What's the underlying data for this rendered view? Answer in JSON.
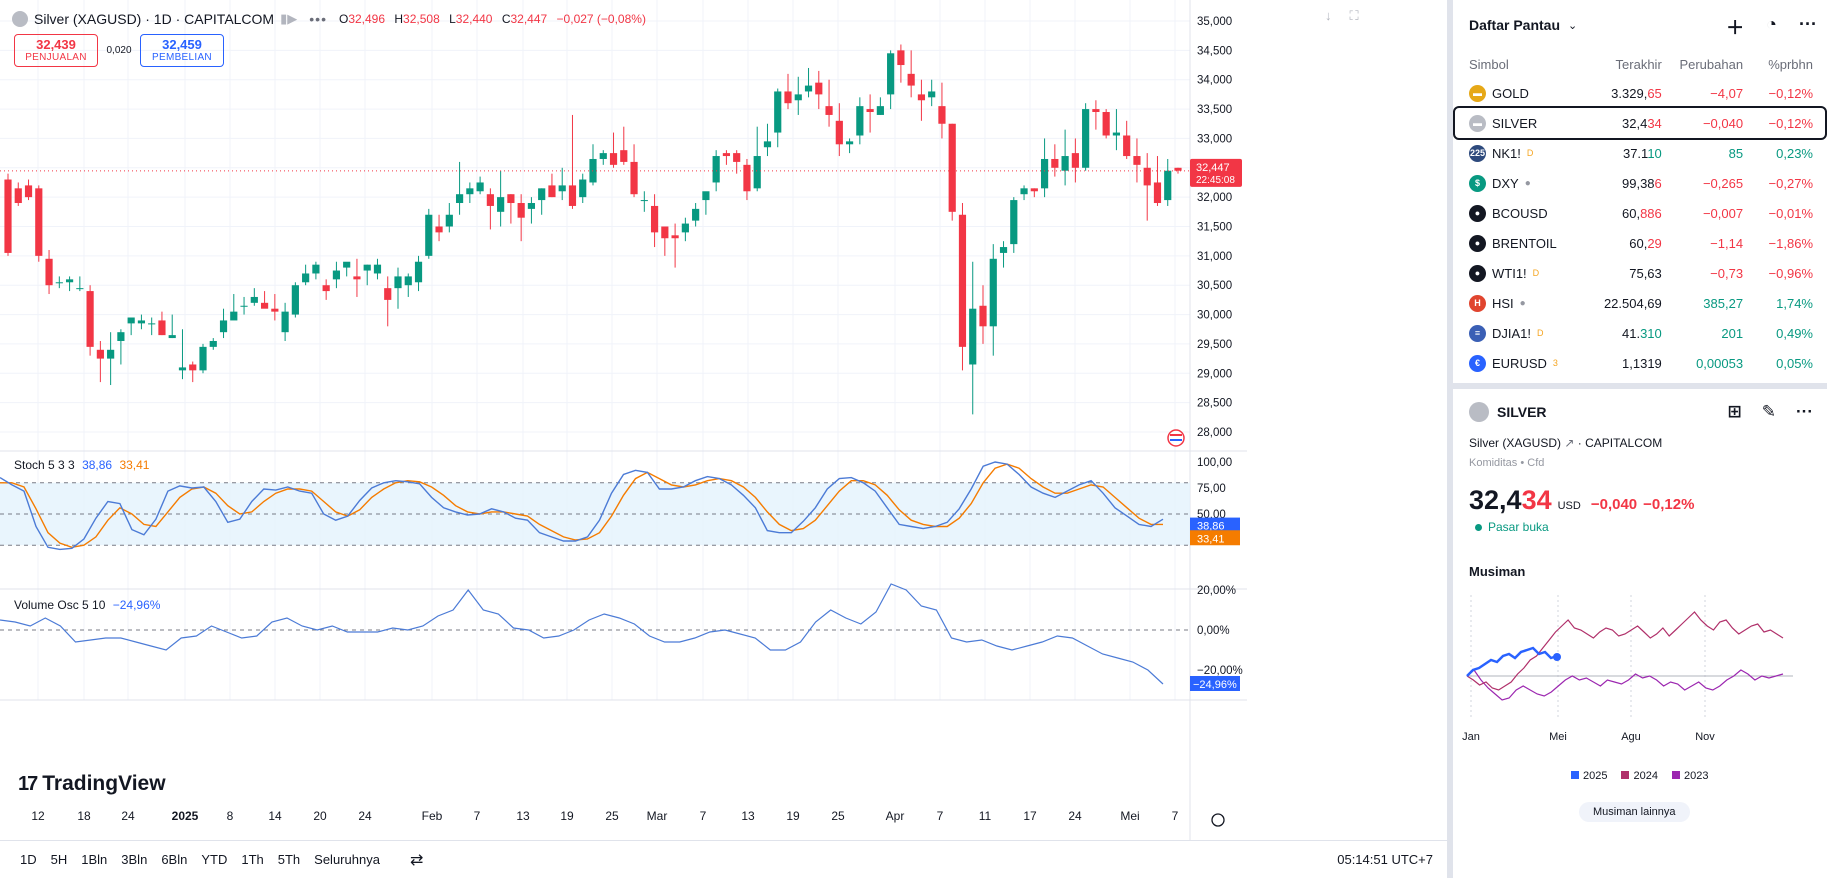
{
  "header": {
    "title": "Silver (XAGUSD) · 1D · CAPITALCOM",
    "ohlc": [
      {
        "k": "O",
        "v": "32,496"
      },
      {
        "k": "H",
        "v": "32,508"
      },
      {
        "k": "L",
        "v": "32,440"
      },
      {
        "k": "C",
        "v": "32,447"
      }
    ],
    "change": "−0,027 (−0,08%)"
  },
  "trade": {
    "sell_price": "32,439",
    "sell_label": "PENJUALAN",
    "spread": "0,020",
    "buy_price": "32,459",
    "buy_label": "PEMBELIAN"
  },
  "price_tag": {
    "value": "32,447",
    "countdown": "22:45:08"
  },
  "price_axis": [
    "35,000",
    "34,500",
    "34,000",
    "33,500",
    "33,000",
    "32,500",
    "32,000",
    "31,500",
    "31,000",
    "30,500",
    "30,000",
    "29,500",
    "29,000",
    "28,500",
    "28,000"
  ],
  "stoch": {
    "label": "Stoch 5 3 3",
    "k_val": "38,86",
    "d_val": "33,41",
    "axis": [
      "100,00",
      "75,00",
      "50,00"
    ],
    "k_color": "#4c7bd6",
    "d_color": "#f57c00"
  },
  "volosc": {
    "label": "Volume Osc 5 10",
    "value": "−24,96%",
    "axis": [
      "20,00%",
      "0,00%",
      "−20,00%"
    ]
  },
  "time_axis": [
    {
      "t": "12",
      "b": false
    },
    {
      "t": "18",
      "b": false
    },
    {
      "t": "24",
      "b": false
    },
    {
      "t": "2025",
      "b": true
    },
    {
      "t": "8",
      "b": false
    },
    {
      "t": "14",
      "b": false
    },
    {
      "t": "20",
      "b": false
    },
    {
      "t": "24",
      "b": false
    },
    {
      "t": "Feb",
      "b": false
    },
    {
      "t": "7",
      "b": false
    },
    {
      "t": "13",
      "b": false
    },
    {
      "t": "19",
      "b": false
    },
    {
      "t": "25",
      "b": false
    },
    {
      "t": "Mar",
      "b": false
    },
    {
      "t": "7",
      "b": false
    },
    {
      "t": "13",
      "b": false
    },
    {
      "t": "19",
      "b": false
    },
    {
      "t": "25",
      "b": false
    },
    {
      "t": "Apr",
      "b": false
    },
    {
      "t": "7",
      "b": false
    },
    {
      "t": "11",
      "b": false
    },
    {
      "t": "17",
      "b": false
    },
    {
      "t": "24",
      "b": false
    },
    {
      "t": "Mei",
      "b": false
    },
    {
      "t": "7",
      "b": false
    }
  ],
  "logo": "TradingView",
  "timeframes": [
    "1D",
    "5H",
    "1Bln",
    "3Bln",
    "6Bln",
    "YTD",
    "1Th",
    "5Th",
    "Seluruhnya"
  ],
  "clock": "05:14:51 UTC+7",
  "colors": {
    "up": "#089981",
    "down": "#f23645",
    "accent": "#2962ff"
  },
  "chart_data": {
    "type": "candlestick",
    "ylim": [
      27800,
      35200
    ],
    "candles": [
      [
        32100,
        32300,
        31050,
        31000,
        32400
      ],
      [
        32050,
        32150,
        31900,
        32250,
        31850
      ],
      [
        32150,
        32200,
        32000,
        32300,
        31950
      ],
      [
        32100,
        32150,
        31000,
        32200,
        30900
      ],
      [
        31000,
        30950,
        30500,
        31100,
        30350
      ],
      [
        30600,
        30550,
        30550,
        30650,
        30450
      ],
      [
        30600,
        30550,
        30600,
        30650,
        30400
      ],
      [
        30550,
        30450,
        30450,
        30650,
        30400
      ],
      [
        30450,
        30400,
        29450,
        30500,
        29300
      ],
      [
        29450,
        29400,
        29250,
        29550,
        28850
      ],
      [
        29500,
        29250,
        29400,
        29700,
        28800
      ],
      [
        29350,
        29550,
        29700,
        29750,
        29150
      ],
      [
        29700,
        29850,
        29950,
        29900,
        29650
      ],
      [
        29900,
        29850,
        29900,
        30000,
        29750
      ],
      [
        29800,
        29850,
        29850,
        29950,
        29650
      ],
      [
        29900,
        29900,
        29650,
        30050,
        29650
      ],
      [
        29650,
        29600,
        29650,
        30000,
        29600
      ],
      [
        29650,
        29050,
        29100,
        29750,
        28900
      ],
      [
        29100,
        29150,
        29050,
        29200,
        28850
      ],
      [
        29100,
        29050,
        29450,
        29500,
        29000
      ],
      [
        29500,
        29450,
        29550,
        29600,
        29400
      ],
      [
        29700,
        29700,
        29900,
        30100,
        29600
      ],
      [
        30050,
        29900,
        30050,
        30350,
        29950
      ],
      [
        30050,
        30150,
        30150,
        30300,
        30000
      ],
      [
        30100,
        30200,
        30300,
        30450,
        30150
      ],
      [
        30150,
        30200,
        30100,
        30400,
        30150
      ],
      [
        30200,
        30100,
        30050,
        30350,
        29900
      ],
      [
        30050,
        29700,
        30050,
        30200,
        29550
      ],
      [
        30200,
        30000,
        30500,
        30550,
        29950
      ],
      [
        30600,
        30550,
        30700,
        30850,
        30500
      ],
      [
        30800,
        30700,
        30850,
        30900,
        30600
      ],
      [
        30650,
        30500,
        30400,
        30600,
        30250
      ],
      [
        30500,
        30600,
        30750,
        30900,
        30450
      ],
      [
        30700,
        30800,
        30900,
        30850,
        30650
      ],
      [
        30750,
        30650,
        30600,
        30950,
        30300
      ],
      [
        30600,
        30750,
        30850,
        30850,
        30500
      ],
      [
        30800,
        30700,
        30850,
        30950,
        30600
      ],
      [
        30600,
        30450,
        30250,
        30650,
        29800
      ],
      [
        30300,
        30450,
        30650,
        30800,
        30100
      ],
      [
        30600,
        30500,
        30650,
        30700,
        30300
      ],
      [
        30500,
        30550,
        30900,
        31000,
        30400
      ],
      [
        31100,
        31000,
        31700,
        31800,
        30950
      ],
      [
        31500,
        31500,
        31400,
        31700,
        31250
      ],
      [
        31450,
        31500,
        31700,
        31900,
        31400
      ],
      [
        31700,
        31900,
        32050,
        32600,
        31700
      ],
      [
        32000,
        32050,
        32150,
        32250,
        31900
      ],
      [
        32200,
        32100,
        32250,
        32350,
        32050
      ],
      [
        32150,
        32050,
        31850,
        32150,
        31450
      ],
      [
        31950,
        31750,
        32000,
        32450,
        31500
      ],
      [
        31950,
        32050,
        31900,
        32050,
        31550
      ],
      [
        32000,
        31900,
        31650,
        32050,
        31250
      ],
      [
        31850,
        31800,
        31900,
        32000,
        31550
      ],
      [
        31800,
        31950,
        32150,
        32150,
        31700
      ],
      [
        32300,
        32200,
        32000,
        32400,
        32000
      ],
      [
        32000,
        32100,
        32200,
        32500,
        31950
      ],
      [
        32250,
        32200,
        31850,
        33400,
        31800
      ],
      [
        32050,
        32000,
        32300,
        32400,
        31900
      ],
      [
        32300,
        32250,
        32650,
        32900,
        32200
      ],
      [
        32650,
        32650,
        32750,
        32800,
        32550
      ],
      [
        32700,
        32750,
        32550,
        33100,
        32500
      ],
      [
        32750,
        32800,
        32600,
        33200,
        32550
      ],
      [
        32700,
        32600,
        32050,
        32900,
        32000
      ],
      [
        32050,
        31950,
        31950,
        32100,
        31750
      ],
      [
        31950,
        31850,
        31400,
        32050,
        31150
      ],
      [
        31400,
        31500,
        31300,
        31500,
        31000
      ],
      [
        31400,
        31350,
        31300,
        31550,
        30800
      ],
      [
        31300,
        31400,
        31550,
        31650,
        31250
      ],
      [
        31450,
        31600,
        31800,
        31900,
        31500
      ],
      [
        31800,
        31950,
        32100,
        32050,
        31700
      ],
      [
        32100,
        32250,
        32700,
        32800,
        32100
      ],
      [
        32600,
        32750,
        32700,
        32800,
        32550
      ],
      [
        32700,
        32750,
        32600,
        32800,
        32400
      ],
      [
        32650,
        32550,
        32100,
        32650,
        31950
      ],
      [
        32350,
        32150,
        32700,
        33200,
        32100
      ],
      [
        32750,
        32850,
        32950,
        33250,
        32700
      ],
      [
        32950,
        33100,
        33800,
        33850,
        32850
      ],
      [
        33800,
        33800,
        33600,
        34100,
        33500
      ],
      [
        33600,
        33650,
        33750,
        34050,
        33400
      ],
      [
        33850,
        33800,
        33900,
        34200,
        33700
      ],
      [
        33900,
        33950,
        33750,
        34150,
        33500
      ],
      [
        33700,
        33550,
        33400,
        34000,
        33200
      ],
      [
        33350,
        33300,
        32900,
        33600,
        32700
      ],
      [
        32900,
        32900,
        32950,
        33000,
        32750
      ],
      [
        32900,
        33050,
        33550,
        33700,
        32900
      ],
      [
        33450,
        33500,
        33450,
        33750,
        33100
      ],
      [
        33500,
        33400,
        33550,
        33700,
        33400
      ],
      [
        33600,
        33750,
        34450,
        34500,
        33500
      ],
      [
        34400,
        34500,
        34250,
        34600,
        33950
      ],
      [
        34200,
        34100,
        33900,
        34500,
        33700
      ],
      [
        33800,
        33750,
        33650,
        34000,
        33300
      ],
      [
        33600,
        33700,
        33800,
        34000,
        33550
      ],
      [
        33700,
        33550,
        33250,
        33950,
        33000
      ],
      [
        33250,
        33250,
        31750,
        33250,
        31600
      ],
      [
        31800,
        31700,
        29450,
        31900,
        29050
      ],
      [
        29350,
        29150,
        30100,
        30900,
        28300
      ],
      [
        30250,
        30150,
        29800,
        30500,
        29500
      ],
      [
        29750,
        29800,
        30950,
        31200,
        29300
      ],
      [
        30900,
        31050,
        31150,
        31250,
        30800
      ],
      [
        31000,
        31200,
        31950,
        32000,
        31050
      ],
      [
        31950,
        32050,
        32150,
        32200,
        31950
      ],
      [
        32150,
        32150,
        32100,
        32150,
        32000
      ],
      [
        32100,
        32150,
        32650,
        33000,
        32000
      ],
      [
        32650,
        32650,
        32500,
        32900,
        32350
      ],
      [
        32550,
        32450,
        32700,
        33150,
        32200
      ],
      [
        32700,
        32750,
        32500,
        33000,
        32250
      ],
      [
        32550,
        32500,
        33500,
        33600,
        32450
      ],
      [
        33600,
        33500,
        33450,
        33650,
        33150
      ],
      [
        33400,
        33450,
        33050,
        33500,
        33000
      ],
      [
        33050,
        33050,
        33100,
        33500,
        32800
      ],
      [
        33050,
        33050,
        32700,
        33300,
        32650
      ],
      [
        32700,
        32700,
        32550,
        33000,
        32250
      ],
      [
        32600,
        32500,
        32200,
        32750,
        31600
      ],
      [
        32300,
        32250,
        31900,
        32700,
        31850
      ],
      [
        31950,
        31950,
        32450,
        32650,
        31850
      ],
      [
        32450,
        32500,
        32450,
        32500,
        32400
      ]
    ]
  },
  "watchlist": {
    "title": "Daftar Pantau",
    "cols": {
      "sym": "Simbol",
      "last": "Terakhir",
      "chg": "Perubahan",
      "pct": "%prbhn"
    },
    "rows": [
      {
        "sym": "GOLD",
        "last_a": "3.329,",
        "last_b": "65",
        "chg": "−4,07",
        "pct": "−0,12%",
        "dir": "neg",
        "icon": "#e6a817",
        "glyph": "▬",
        "sup": "",
        "dot": false,
        "sel": false
      },
      {
        "sym": "SILVER",
        "last_a": "32,4",
        "last_b": "34",
        "chg": "−0,040",
        "pct": "−0,12%",
        "dir": "neg",
        "icon": "#b9bcc4",
        "glyph": "▬",
        "sup": "",
        "dot": false,
        "sel": true
      },
      {
        "sym": "NK1!",
        "last_a": "37.1",
        "last_b": "10",
        "chg": "85",
        "pct": "0,23%",
        "dir": "pos",
        "icon": "#2e4a7d",
        "glyph": "225",
        "sup": "D",
        "dot": false,
        "sel": false
      },
      {
        "sym": "DXY",
        "last_a": "99,38",
        "last_b": "6",
        "chg": "−0,265",
        "pct": "−0,27%",
        "dir": "neg",
        "icon": "#089981",
        "glyph": "$",
        "sup": "",
        "dot": true,
        "sel": false
      },
      {
        "sym": "BCOUSD",
        "last_a": "60,",
        "last_b": "886",
        "chg": "−0,007",
        "pct": "−0,01%",
        "dir": "neg",
        "icon": "#131722",
        "glyph": "●",
        "sup": "",
        "dot": false,
        "sel": false
      },
      {
        "sym": "BRENTOIL",
        "last_a": "60,",
        "last_b": "29",
        "chg": "−1,14",
        "pct": "−1,86%",
        "dir": "neg",
        "icon": "#131722",
        "glyph": "●",
        "sup": "",
        "dot": false,
        "sel": false
      },
      {
        "sym": "WTI1!",
        "last_a": "75,63",
        "last_b": "",
        "chg": "−0,73",
        "pct": "−0,96%",
        "dir": "neg",
        "icon": "#131722",
        "glyph": "●",
        "sup": "D",
        "dot": false,
        "sel": false
      },
      {
        "sym": "HSI",
        "last_a": "22.504,69",
        "last_b": "",
        "chg": "385,27",
        "pct": "1,74%",
        "dir": "pos",
        "icon": "#e0452f",
        "glyph": "H",
        "sup": "",
        "dot": true,
        "sel": false
      },
      {
        "sym": "DJIA1!",
        "last_a": "41.",
        "last_b": "310",
        "chg": "201",
        "pct": "0,49%",
        "dir": "pos",
        "icon": "#3a5fb5",
        "glyph": "≡",
        "sup": "D",
        "dot": false,
        "sel": false
      },
      {
        "sym": "EURUSD",
        "last_a": "1,1319",
        "last_b": "",
        "chg": "0,00053",
        "pct": "0,05%",
        "dir": "pos",
        "icon": "#2962ff",
        "glyph": "€",
        "sup": "3",
        "dot": false,
        "sel": false
      }
    ]
  },
  "detail": {
    "symbol": "SILVER",
    "name": "Silver (XAGUSD)",
    "exchange": "CAPITALCOM",
    "category": "Komiditas",
    "type": "Cfd",
    "price_a": "32,4",
    "price_b": "34",
    "currency": "USD",
    "change": "−0,040",
    "change_pct": "−0,12%",
    "status": "Pasar buka",
    "seasonal_title": "Musiman",
    "seasonal_months": [
      "Jan",
      "Mei",
      "Agu",
      "Nov"
    ],
    "seasonal_legend": [
      {
        "name": "2025",
        "color": "#2962ff"
      },
      {
        "name": "2024",
        "color": "#b0306a"
      },
      {
        "name": "2023",
        "color": "#9c27b0"
      }
    ],
    "more_label": "Musiman lainnya"
  }
}
